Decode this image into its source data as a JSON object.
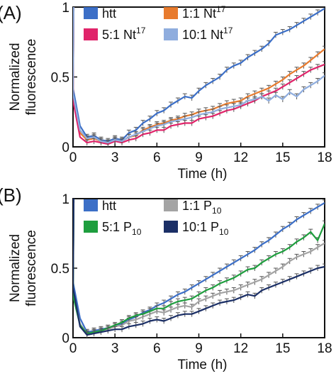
{
  "chart_data": [
    {
      "type": "line",
      "panel_label": "(A)",
      "xlabel": "Time (h)",
      "ylabel": "Normalized fluorescence",
      "xlim": [
        0,
        18
      ],
      "ylim": [
        0,
        1.0
      ],
      "xticks": [
        "0",
        "3",
        "6",
        "9",
        "12",
        "15",
        "18"
      ],
      "yticks": [
        "0",
        "0.5",
        "1"
      ],
      "legend_position": "top",
      "x": [
        0,
        0.5,
        1,
        1.5,
        2,
        2.5,
        3,
        3.5,
        4,
        4.5,
        5,
        5.5,
        6,
        6.5,
        7,
        7.5,
        8,
        8.5,
        9,
        9.5,
        10,
        10.5,
        11,
        11.5,
        12,
        12.5,
        13,
        13.5,
        14,
        14.5,
        15,
        15.5,
        16,
        16.5,
        17,
        17.5,
        18
      ],
      "series": [
        {
          "name": "htt",
          "sup": "",
          "color": "#3c6fc7",
          "values": [
            0.42,
            0.15,
            0.07,
            0.08,
            0.05,
            0.04,
            0.06,
            0.05,
            0.1,
            0.12,
            0.17,
            0.2,
            0.24,
            0.26,
            0.3,
            0.33,
            0.36,
            0.35,
            0.4,
            0.44,
            0.47,
            0.5,
            0.55,
            0.58,
            0.6,
            0.64,
            0.67,
            0.7,
            0.74,
            0.8,
            0.82,
            0.84,
            0.87,
            0.9,
            0.93,
            0.96,
            0.99
          ],
          "error": 0.02
        },
        {
          "name": "1:1 Nt",
          "sup": "17",
          "color": "#e87b2e",
          "values": [
            0.36,
            0.1,
            0.05,
            0.06,
            0.04,
            0.03,
            0.05,
            0.04,
            0.07,
            0.08,
            0.12,
            0.14,
            0.16,
            0.17,
            0.19,
            0.2,
            0.22,
            0.23,
            0.25,
            0.26,
            0.27,
            0.29,
            0.31,
            0.32,
            0.33,
            0.36,
            0.38,
            0.4,
            0.42,
            0.45,
            0.48,
            0.52,
            0.55,
            0.58,
            0.62,
            0.66,
            0.7
          ],
          "error": 0.02
        },
        {
          "name": "5:1 Nt",
          "sup": "17",
          "color": "#e0246a",
          "values": [
            0.33,
            0.07,
            0.03,
            0.04,
            0.03,
            0.02,
            0.04,
            0.03,
            0.05,
            0.06,
            0.09,
            0.1,
            0.12,
            0.12,
            0.15,
            0.16,
            0.17,
            0.17,
            0.2,
            0.21,
            0.22,
            0.24,
            0.26,
            0.27,
            0.29,
            0.31,
            0.33,
            0.36,
            0.38,
            0.4,
            0.43,
            0.46,
            0.49,
            0.52,
            0.55,
            0.57,
            0.59
          ],
          "error": 0.02
        },
        {
          "name": "10:1 Nt",
          "sup": "17",
          "color": "#8fadde",
          "values": [
            0.38,
            0.12,
            0.06,
            0.07,
            0.04,
            0.03,
            0.05,
            0.04,
            0.07,
            0.09,
            0.11,
            0.13,
            0.15,
            0.16,
            0.18,
            0.19,
            0.2,
            0.21,
            0.23,
            0.24,
            0.25,
            0.27,
            0.28,
            0.29,
            0.3,
            0.33,
            0.34,
            0.36,
            0.33,
            0.37,
            0.34,
            0.39,
            0.36,
            0.41,
            0.44,
            0.47,
            0.51
          ],
          "error": 0.02
        }
      ]
    },
    {
      "type": "line",
      "panel_label": "(B)",
      "xlabel": "Time (h)",
      "ylabel": "Normalized fluorescence",
      "xlim": [
        0,
        18
      ],
      "ylim": [
        0,
        1.0
      ],
      "xticks": [
        "0",
        "3",
        "6",
        "9",
        "12",
        "15",
        "18"
      ],
      "yticks": [
        "0",
        "0.5",
        "1"
      ],
      "legend_position": "top",
      "x": [
        0,
        0.5,
        1,
        1.5,
        2,
        2.5,
        3,
        3.5,
        4,
        4.5,
        5,
        5.5,
        6,
        6.5,
        7,
        7.5,
        8,
        8.5,
        9,
        9.5,
        10,
        10.5,
        11,
        11.5,
        12,
        12.5,
        13,
        13.5,
        14,
        14.5,
        15,
        15.5,
        16,
        16.5,
        17,
        17.5,
        18
      ],
      "series": [
        {
          "name": "htt",
          "sup": "",
          "color": "#3c6fc7",
          "values": [
            0.4,
            0.14,
            0.04,
            0.05,
            0.06,
            0.07,
            0.08,
            0.1,
            0.13,
            0.15,
            0.18,
            0.2,
            0.23,
            0.25,
            0.28,
            0.31,
            0.33,
            0.36,
            0.39,
            0.42,
            0.45,
            0.48,
            0.51,
            0.54,
            0.57,
            0.6,
            0.63,
            0.67,
            0.7,
            0.74,
            0.78,
            0.81,
            0.85,
            0.88,
            0.91,
            0.94,
            0.97
          ],
          "error": 0.02
        },
        {
          "name": "1:1 P",
          "sup": "10",
          "color": "#a4a4a4",
          "values": [
            0.33,
            0.1,
            0.03,
            0.04,
            0.05,
            0.06,
            0.08,
            0.09,
            0.12,
            0.13,
            0.15,
            0.17,
            0.19,
            0.18,
            0.2,
            0.22,
            0.23,
            0.22,
            0.26,
            0.28,
            0.3,
            0.32,
            0.33,
            0.34,
            0.36,
            0.38,
            0.4,
            0.42,
            0.45,
            0.48,
            0.51,
            0.55,
            0.58,
            0.6,
            0.62,
            0.65,
            0.68
          ],
          "error": 0.02
        },
        {
          "name": "5:1 P",
          "sup": "10",
          "color": "#1e9e3e",
          "values": [
            0.3,
            0.09,
            0.03,
            0.04,
            0.05,
            0.07,
            0.09,
            0.11,
            0.14,
            0.16,
            0.17,
            0.19,
            0.21,
            0.21,
            0.24,
            0.26,
            0.27,
            0.28,
            0.31,
            0.34,
            0.36,
            0.39,
            0.41,
            0.43,
            0.46,
            0.49,
            0.5,
            0.54,
            0.57,
            0.6,
            0.62,
            0.65,
            0.69,
            0.72,
            0.76,
            0.7,
            0.82
          ],
          "error": 0.02
        },
        {
          "name": "10:1 P",
          "sup": "10",
          "color": "#1b2f66",
          "values": [
            0.36,
            0.08,
            0.02,
            0.03,
            0.04,
            0.05,
            0.06,
            0.06,
            0.08,
            0.09,
            0.1,
            0.12,
            0.13,
            0.12,
            0.14,
            0.16,
            0.17,
            0.17,
            0.19,
            0.21,
            0.23,
            0.25,
            0.26,
            0.27,
            0.29,
            0.31,
            0.3,
            0.34,
            0.36,
            0.38,
            0.4,
            0.42,
            0.44,
            0.46,
            0.48,
            0.5,
            0.51
          ],
          "error": 0.02
        }
      ]
    }
  ]
}
